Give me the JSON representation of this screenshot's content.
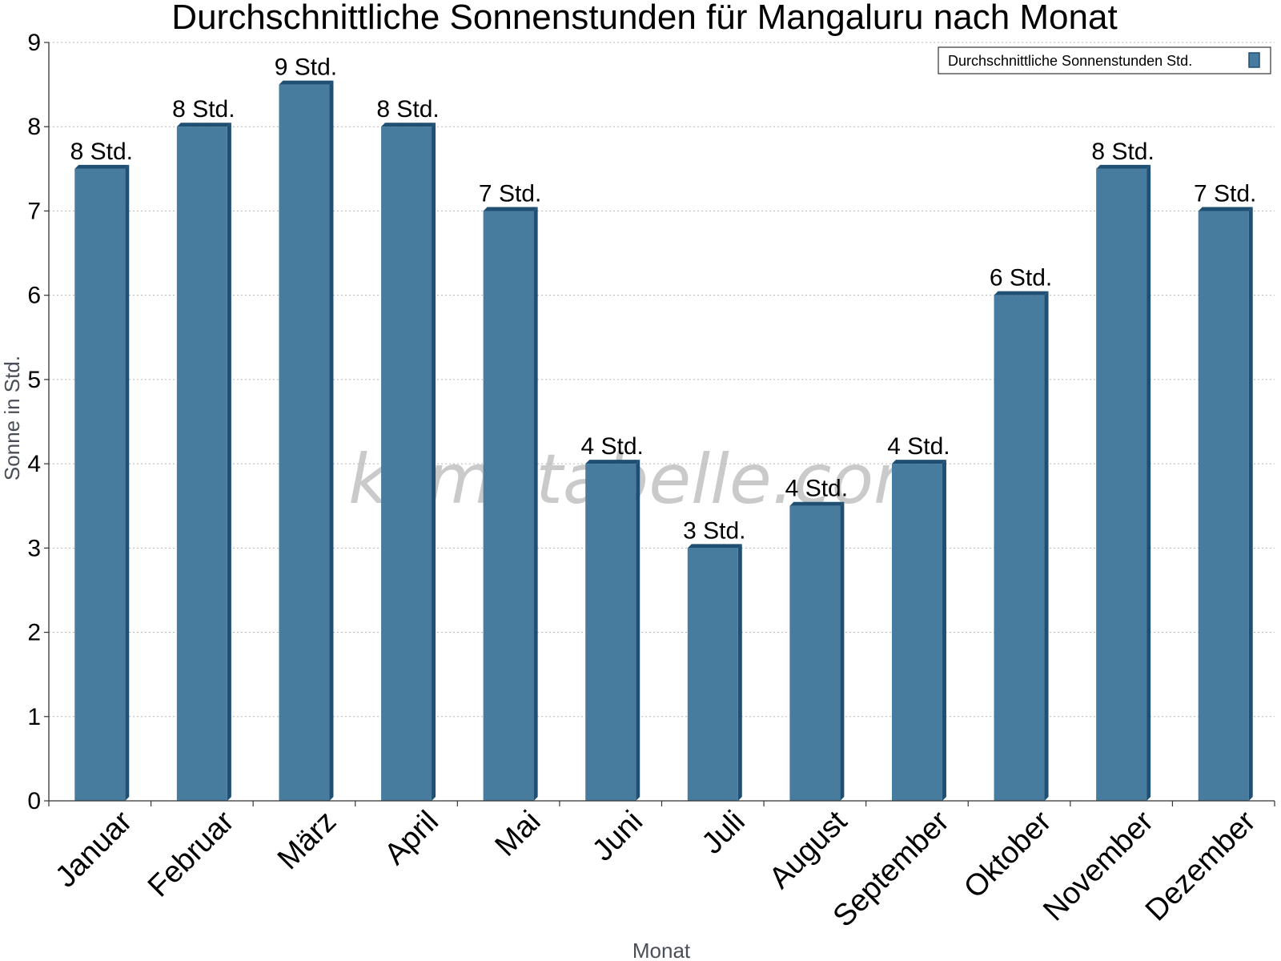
{
  "watermark": "klimatabelle.com",
  "chart_data": {
    "type": "bar",
    "title": "Durchschnittliche Sonnenstunden für Mangaluru nach Monat",
    "xlabel": "Monat",
    "ylabel": "Sonne in Std.",
    "ylim": [
      0,
      9
    ],
    "yticks": [
      0,
      1,
      2,
      3,
      4,
      5,
      6,
      7,
      8,
      9
    ],
    "grid": true,
    "legend_position": "top-right",
    "categories": [
      "Januar",
      "Februar",
      "März",
      "April",
      "Mai",
      "Juni",
      "Juli",
      "August",
      "September",
      "Oktober",
      "November",
      "Dezember"
    ],
    "series": [
      {
        "name": "Durchschnittliche Sonnenstunden Std.",
        "color": "#477c9f",
        "edge_color": "#1f4f72",
        "values": [
          7.5,
          8,
          8.5,
          8,
          7,
          4,
          3,
          3.5,
          4,
          6,
          7.5,
          7
        ],
        "labels": [
          "8 Std.",
          "8 Std.",
          "9 Std.",
          "8 Std.",
          "7 Std.",
          "4 Std.",
          "3 Std.",
          "4 Std.",
          "4 Std.",
          "6 Std.",
          "8 Std.",
          "7 Std."
        ]
      }
    ]
  }
}
